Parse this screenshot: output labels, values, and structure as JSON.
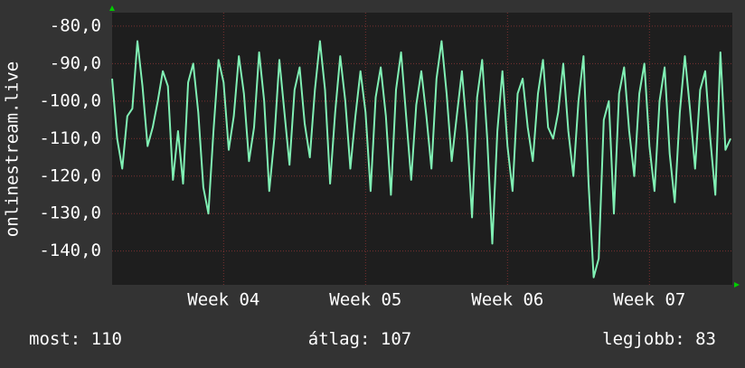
{
  "chart_data": {
    "type": "line",
    "y_label": "onlinestream.live",
    "categories": [
      null,
      null,
      null,
      null,
      null,
      null,
      null,
      null,
      null,
      null,
      null,
      null,
      null,
      null,
      null,
      null,
      null,
      null,
      null,
      null,
      null,
      null,
      "Week 04",
      null,
      null,
      null,
      null,
      null,
      null,
      null,
      null,
      null,
      null,
      null,
      null,
      null,
      null,
      null,
      null,
      null,
      null,
      null,
      null,
      null,
      null,
      null,
      null,
      null,
      null,
      null,
      "Week 05",
      null,
      null,
      null,
      null,
      null,
      null,
      null,
      null,
      null,
      null,
      null,
      null,
      null,
      null,
      null,
      null,
      null,
      null,
      null,
      null,
      null,
      null,
      null,
      null,
      null,
      null,
      null,
      "Week 06",
      null,
      null,
      null,
      null,
      null,
      null,
      null,
      null,
      null,
      null,
      null,
      null,
      null,
      null,
      null,
      null,
      null,
      null,
      null,
      null,
      null,
      null,
      null,
      null,
      null,
      null,
      null,
      "Week 07",
      null,
      null,
      null,
      null,
      null,
      null,
      null,
      null,
      null,
      null,
      null,
      null,
      null,
      null,
      null,
      null
    ],
    "series": [
      {
        "name": "onlinestream.live",
        "color": "#80f0b4",
        "values": [
          -94,
          -110,
          -118,
          -104,
          -102,
          -84,
          -96,
          -112,
          -107,
          -100,
          -92,
          -96,
          -121,
          -108,
          -122,
          -95,
          -90,
          -103,
          -123,
          -130,
          -108,
          -89,
          -95,
          -113,
          -104,
          -88,
          -98,
          -116,
          -107,
          -87,
          -100,
          -124,
          -110,
          -89,
          -103,
          -117,
          -97,
          -91,
          -106,
          -115,
          -97,
          -84,
          -97,
          -122,
          -103,
          -88,
          -100,
          -118,
          -104,
          -92,
          -103,
          -124,
          -99,
          -91,
          -104,
          -125,
          -97,
          -87,
          -104,
          -121,
          -101,
          -92,
          -104,
          -118,
          -94,
          -84,
          -98,
          -116,
          -104,
          -92,
          -108,
          -131,
          -99,
          -89,
          -110,
          -138,
          -108,
          -92,
          -112,
          -124,
          -98,
          -94,
          -107,
          -116,
          -98,
          -89,
          -107,
          -110,
          -103,
          -90,
          -108,
          -120,
          -100,
          -88,
          -122,
          -147,
          -142,
          -105,
          -100,
          -130,
          -98,
          -91,
          -108,
          -120,
          -98,
          -90,
          -112,
          -124,
          -100,
          -91,
          -114,
          -127,
          -103,
          -88,
          -102,
          -118,
          -97,
          -92,
          -110,
          -125,
          -87,
          -113,
          -110
        ]
      }
    ],
    "ylim": [
      -149,
      -76.4
    ],
    "yticks": [
      {
        "value": -80,
        "label": "-80,0"
      },
      {
        "value": -90,
        "label": "-90,0"
      },
      {
        "value": -100,
        "label": "-100,0"
      },
      {
        "value": -110,
        "label": "-110,0"
      },
      {
        "value": -120,
        "label": "-120,0"
      },
      {
        "value": -130,
        "label": "-130,0"
      },
      {
        "value": -140,
        "label": "-140,0"
      }
    ],
    "grid": true,
    "stats": [
      {
        "label": "most:",
        "value": 110
      },
      {
        "label": "átlag:",
        "value": 107
      },
      {
        "label": "legjobb:",
        "value": 83
      }
    ]
  }
}
